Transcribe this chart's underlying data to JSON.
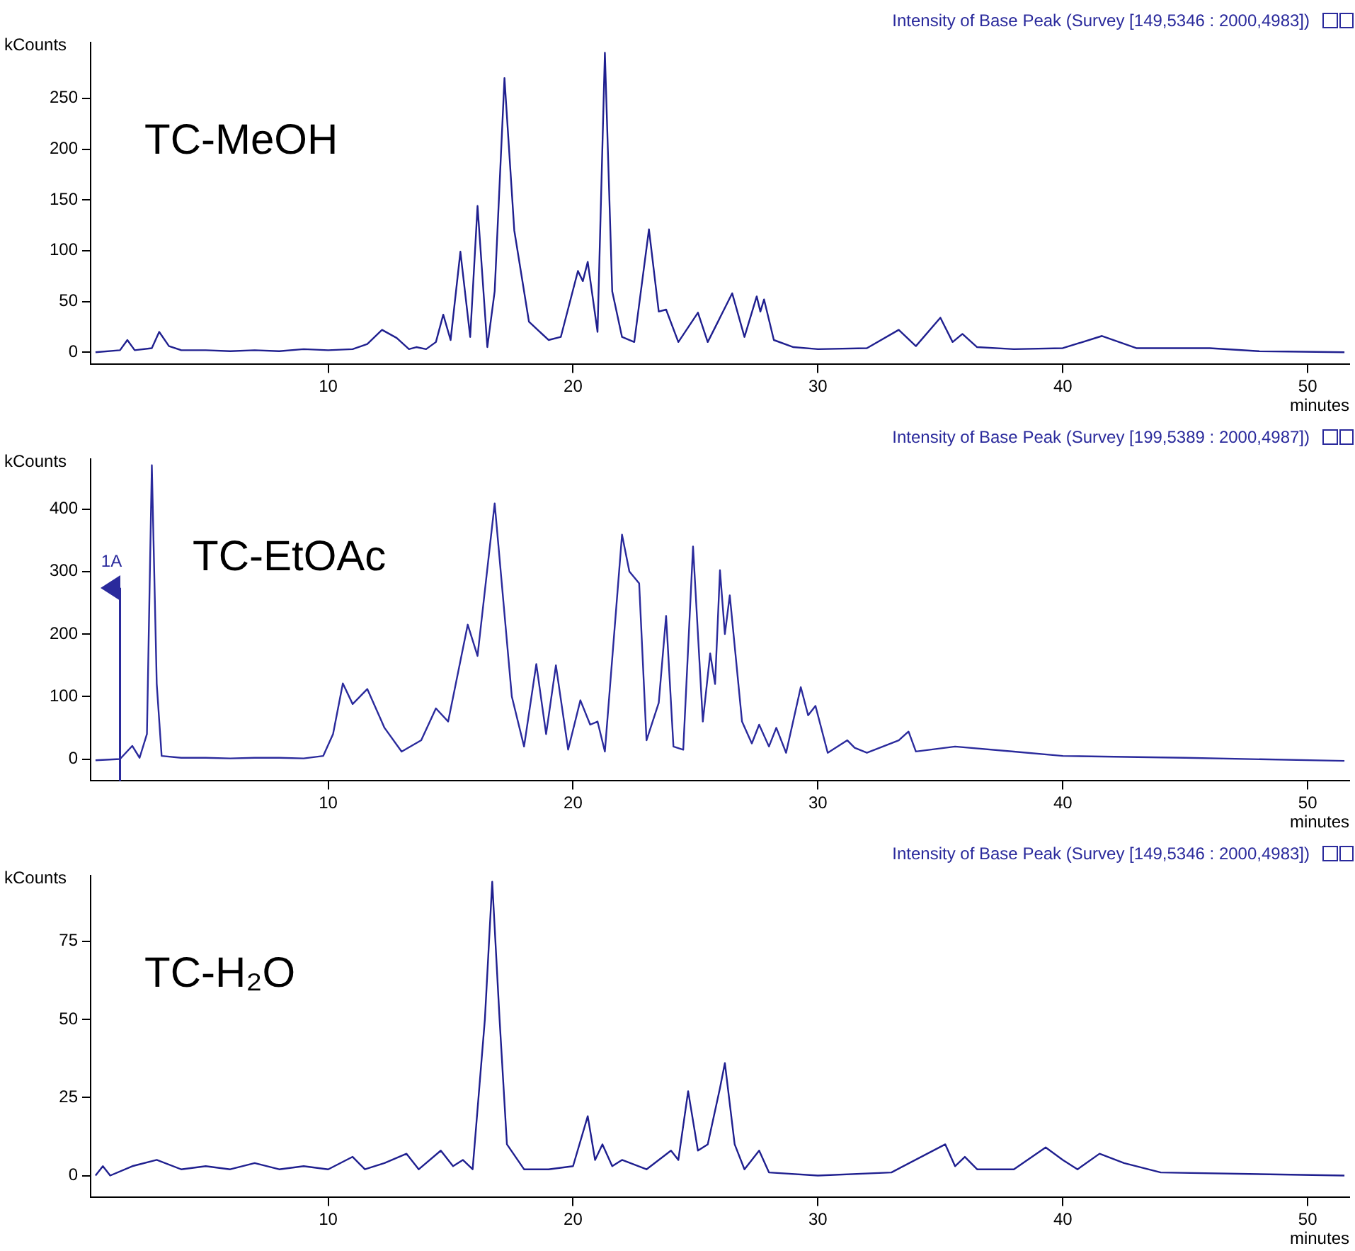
{
  "chart_data": [
    {
      "type": "line",
      "title": "Intensity of Base Peak (Survey [149,5346 : 2000,4983])",
      "xlabel": "minutes",
      "ylabel": "kCounts",
      "annotations": [
        "TC-MeOH"
      ],
      "color": "#1f1f8f",
      "marker": "none",
      "grid": false,
      "xlim": [
        0.3,
        51.7
      ],
      "xticks": [
        10,
        20,
        30,
        40,
        50
      ],
      "ylim": [
        -12,
        305
      ],
      "yticks": [
        0,
        50,
        100,
        150,
        200,
        250
      ],
      "x": [
        0.5,
        1.5,
        1.8,
        2.1,
        2.8,
        3.1,
        3.5,
        4,
        5,
        6,
        7,
        8,
        9,
        10,
        11,
        11.6,
        12.2,
        12.8,
        13.3,
        13.6,
        14,
        14.4,
        14.7,
        15,
        15.4,
        15.8,
        16.1,
        16.5,
        16.8,
        17.2,
        17.6,
        18.2,
        19,
        19.5,
        20.2,
        20.4,
        20.6,
        21,
        21.3,
        21.6,
        22,
        22.5,
        23.1,
        23.5,
        23.8,
        24.3,
        25.1,
        25.5,
        26.5,
        27,
        27.5,
        27.65,
        27.8,
        28.2,
        29,
        30,
        32,
        33.3,
        34,
        35,
        35.5,
        35.9,
        36.5,
        38,
        40,
        41.6,
        43,
        46,
        48,
        51.5
      ],
      "values": [
        0,
        2,
        12,
        2,
        4,
        20,
        6,
        2,
        2,
        1,
        2,
        1,
        3,
        2,
        3,
        8,
        22,
        14,
        3,
        5,
        3,
        10,
        37,
        12,
        99,
        15,
        144,
        5,
        60,
        270,
        120,
        30,
        12,
        15,
        80,
        70,
        89,
        20,
        295,
        60,
        15,
        10,
        121,
        40,
        42,
        10,
        39,
        10,
        58,
        15,
        55,
        40,
        52,
        12,
        5,
        3,
        4,
        22,
        6,
        34,
        10,
        18,
        5,
        3,
        4,
        16,
        4,
        4,
        1,
        0
      ]
    },
    {
      "type": "line",
      "title": "Intensity of Base Peak (Survey [199,5389 : 2000,4987])",
      "xlabel": "minutes",
      "ylabel": "kCounts",
      "annotations": [
        "TC-EtOAc"
      ],
      "color": "#2a2a9c",
      "marker": "none",
      "grid": false,
      "xlim": [
        0.3,
        51.7
      ],
      "xticks": [
        10,
        20,
        30,
        40,
        50
      ],
      "ylim": [
        -35,
        480
      ],
      "yticks": [
        0,
        100,
        200,
        300,
        400
      ],
      "ref_lines": [
        {
          "axis": "x",
          "value": 1.5,
          "label": "1A"
        }
      ],
      "x": [
        0.5,
        1.5,
        2.0,
        2.3,
        2.6,
        2.8,
        3.0,
        3.2,
        4,
        5,
        6,
        7,
        8,
        9,
        9.8,
        10.2,
        10.6,
        11,
        11.6,
        12.3,
        13,
        13.8,
        14.4,
        14.9,
        15.7,
        16.1,
        16.8,
        17.5,
        18,
        18.5,
        18.9,
        19.3,
        19.8,
        20.3,
        20.7,
        21.0,
        21.3,
        22.0,
        22.3,
        22.7,
        23.0,
        23.5,
        23.8,
        24.1,
        24.5,
        24.9,
        25.3,
        25.6,
        25.8,
        26.0,
        26.2,
        26.4,
        26.9,
        27.3,
        27.6,
        28,
        28.3,
        28.7,
        29.3,
        29.6,
        29.9,
        30.4,
        31.2,
        31.5,
        32,
        33.3,
        33.7,
        34,
        35.6,
        38,
        40,
        45,
        51.5
      ],
      "values": [
        -2,
        0,
        21,
        2,
        40,
        470,
        120,
        5,
        2,
        2,
        1,
        2,
        2,
        1,
        5,
        40,
        121,
        88,
        112,
        50,
        12,
        30,
        81,
        60,
        215,
        165,
        409,
        100,
        20,
        152,
        40,
        150,
        15,
        94,
        55,
        60,
        12,
        359,
        300,
        281,
        30,
        90,
        229,
        20,
        15,
        340,
        60,
        169,
        120,
        302,
        200,
        262,
        60,
        25,
        55,
        20,
        50,
        10,
        115,
        70,
        85,
        10,
        30,
        18,
        10,
        30,
        44,
        12,
        20,
        12,
        5,
        2,
        -3
      ]
    },
    {
      "type": "line",
      "title": "Intensity of Base Peak (Survey [149,5346 : 2000,4983])",
      "xlabel": "minutes",
      "ylabel": "kCounts",
      "annotations": [
        "TC-H₂O"
      ],
      "color": "#1f1f8f",
      "marker": "none",
      "grid": false,
      "xlim": [
        0.3,
        51.7
      ],
      "xticks": [
        10,
        20,
        30,
        40,
        50
      ],
      "ylim": [
        -7,
        96
      ],
      "yticks": [
        0,
        25,
        50,
        75
      ],
      "x": [
        0.5,
        0.8,
        1.1,
        2,
        3,
        4,
        5,
        6,
        7,
        8,
        9,
        10,
        11,
        11.5,
        12.3,
        13.2,
        13.7,
        14.6,
        15.1,
        15.5,
        15.9,
        16.4,
        16.7,
        17.0,
        17.3,
        18,
        19,
        20,
        20.6,
        20.9,
        21.2,
        21.6,
        22,
        23,
        24,
        24.3,
        24.7,
        25.1,
        25.5,
        26.0,
        26.2,
        26.6,
        27,
        27.6,
        28,
        30,
        33,
        35.2,
        35.6,
        36,
        36.5,
        38,
        39.3,
        40,
        40.6,
        41.5,
        42.5,
        44,
        51.5
      ],
      "values": [
        0,
        3,
        0,
        3,
        5,
        2,
        3,
        2,
        4,
        2,
        3,
        2,
        6,
        2,
        4,
        7,
        2,
        8,
        3,
        5,
        2,
        50,
        94,
        50,
        10,
        2,
        2,
        3,
        19,
        5,
        10,
        3,
        5,
        2,
        8,
        5,
        27,
        8,
        10,
        28,
        36,
        10,
        2,
        8,
        1,
        0,
        1,
        10,
        3,
        6,
        2,
        2,
        9,
        5,
        2,
        7,
        4,
        1,
        0
      ]
    }
  ]
}
